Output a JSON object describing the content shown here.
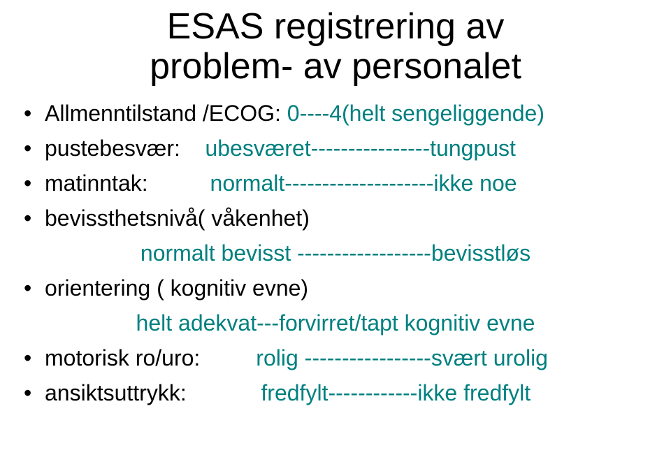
{
  "title_line1": "ESAS  registrering av",
  "title_line2": "problem-  av personalet",
  "colors": {
    "text": "#000000",
    "accent": "#008080",
    "background": "#ffffff"
  },
  "typography": {
    "title_fontsize": 52,
    "body_fontsize": 32,
    "font_family": "Arial"
  },
  "items": [
    {
      "label": "Allmenntilstand /ECOG:",
      "value": "0----4(helt sengeliggende)"
    },
    {
      "label": "pustebesvær:",
      "value": "ubesværet----------------tungpust"
    },
    {
      "label": "matinntak:",
      "value": "normalt--------------------ikke noe"
    },
    {
      "label": "bevissthetsnivå( våkenhet)",
      "sub": "normalt bevisst ------------------bevisstløs"
    },
    {
      "label": "orientering ( kognitiv evne)",
      "sub": "helt adekvat---forvirret/tapt kognitiv evne"
    },
    {
      "label": "motorisk ro/uro:",
      "value": "rolig -----------------svært urolig"
    },
    {
      "label": "ansiktsuttrykk:",
      "value": "fredfylt------------ikke fredfylt"
    }
  ]
}
